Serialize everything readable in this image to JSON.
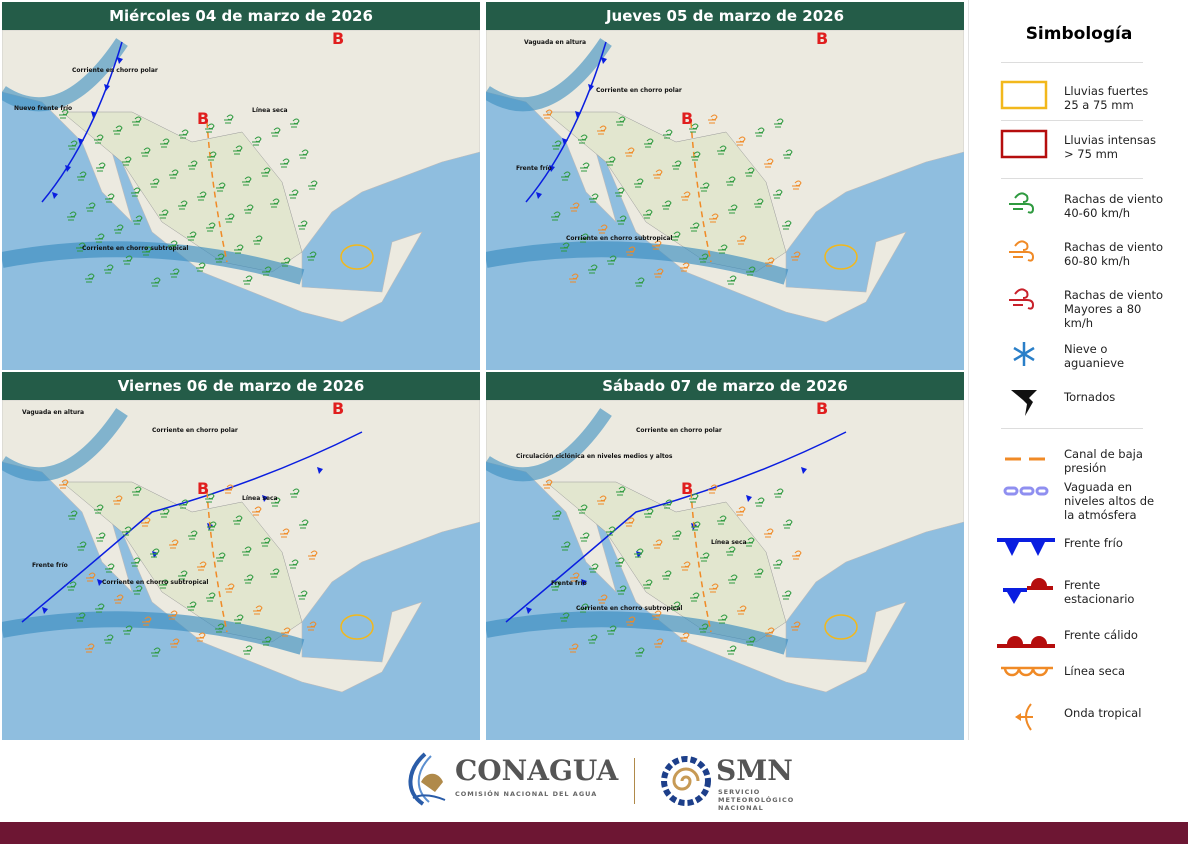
{
  "panels": [
    {
      "title": "Miércoles 04 de marzo de 2026",
      "labels": [
        "Corriente en chorro polar",
        "Nuevo frente frío",
        "Línea seca",
        "Corriente en chorro subtropical"
      ]
    },
    {
      "title": "Jueves 05 de marzo de 2026",
      "labels": [
        "Vaguada en altura",
        "Corriente en chorro polar",
        "Frente frío",
        "Corriente en chorro subtropical"
      ]
    },
    {
      "title": "Viernes 06 de marzo de 2026",
      "labels": [
        "Vaguada en altura",
        "Corriente en chorro polar",
        "Línea seca",
        "Frente frío",
        "Corriente en chorro subtropical"
      ]
    },
    {
      "title": "Sábado 07 de marzo de 2026",
      "labels": [
        "Circulación ciclónica en niveles medios y altos",
        "Corriente en chorro polar",
        "Línea seca",
        "Frente frío",
        "Corriente en chorro subtropical"
      ]
    }
  ],
  "pressure_label": "B",
  "legend": {
    "title": "Simbología",
    "items": [
      {
        "icon": "heavy-rain-box",
        "color": "#f2b81c",
        "label": "Lluvias fuertes",
        "sub": "25 a 75 mm"
      },
      {
        "icon": "intense-rain-box",
        "color": "#b50d0d",
        "label": "Lluvias intensas",
        "sub": "> 75 mm"
      },
      {
        "icon": "wind-icon",
        "color": "#2e9a3f",
        "label": "Rachas de viento",
        "sub": "40-60 km/h"
      },
      {
        "icon": "wind-icon",
        "color": "#f08a26",
        "label": "Rachas de viento",
        "sub": "60-80 km/h"
      },
      {
        "icon": "wind-icon",
        "color": "#c8202a",
        "label": "Rachas de viento",
        "sub": "Mayores a 80 km/h"
      },
      {
        "icon": "snowflake-icon",
        "color": "#2a7fc8",
        "label": "Nieve o",
        "sub": "aguanieve"
      },
      {
        "icon": "tornado-icon",
        "color": "#111111",
        "label": "Tornados",
        "sub": ""
      },
      {
        "icon": "low-pressure-trough-icon",
        "color": "#f08a26",
        "label": "Canal de baja",
        "sub": "presión"
      },
      {
        "icon": "upper-trough-icon",
        "color": "#8f8ff0",
        "label": "Vaguada en",
        "sub": "niveles altos de la atmósfera"
      },
      {
        "icon": "cold-front-icon",
        "color": "#0a1ee0",
        "label": "Frente frío",
        "sub": ""
      },
      {
        "icon": "stationary-front-icon",
        "color": "#b50d0d",
        "label": "Frente",
        "sub": "estacionario"
      },
      {
        "icon": "warm-front-icon",
        "color": "#b50d0d",
        "label": "Frente cálido",
        "sub": ""
      },
      {
        "icon": "dry-line-icon",
        "color": "#f08a26",
        "label": "Línea seca",
        "sub": ""
      },
      {
        "icon": "tropical-wave-icon",
        "color": "#f08a26",
        "label": "Onda tropical",
        "sub": ""
      }
    ]
  },
  "footer": {
    "conagua": "CONAGUA",
    "conagua_sub": "COMISIÓN NACIONAL DEL AGUA",
    "smn": "SMN",
    "smn_sub1": "SERVICIO",
    "smn_sub2": "METEOROLÓGICO",
    "smn_sub3": "NACIONAL"
  }
}
